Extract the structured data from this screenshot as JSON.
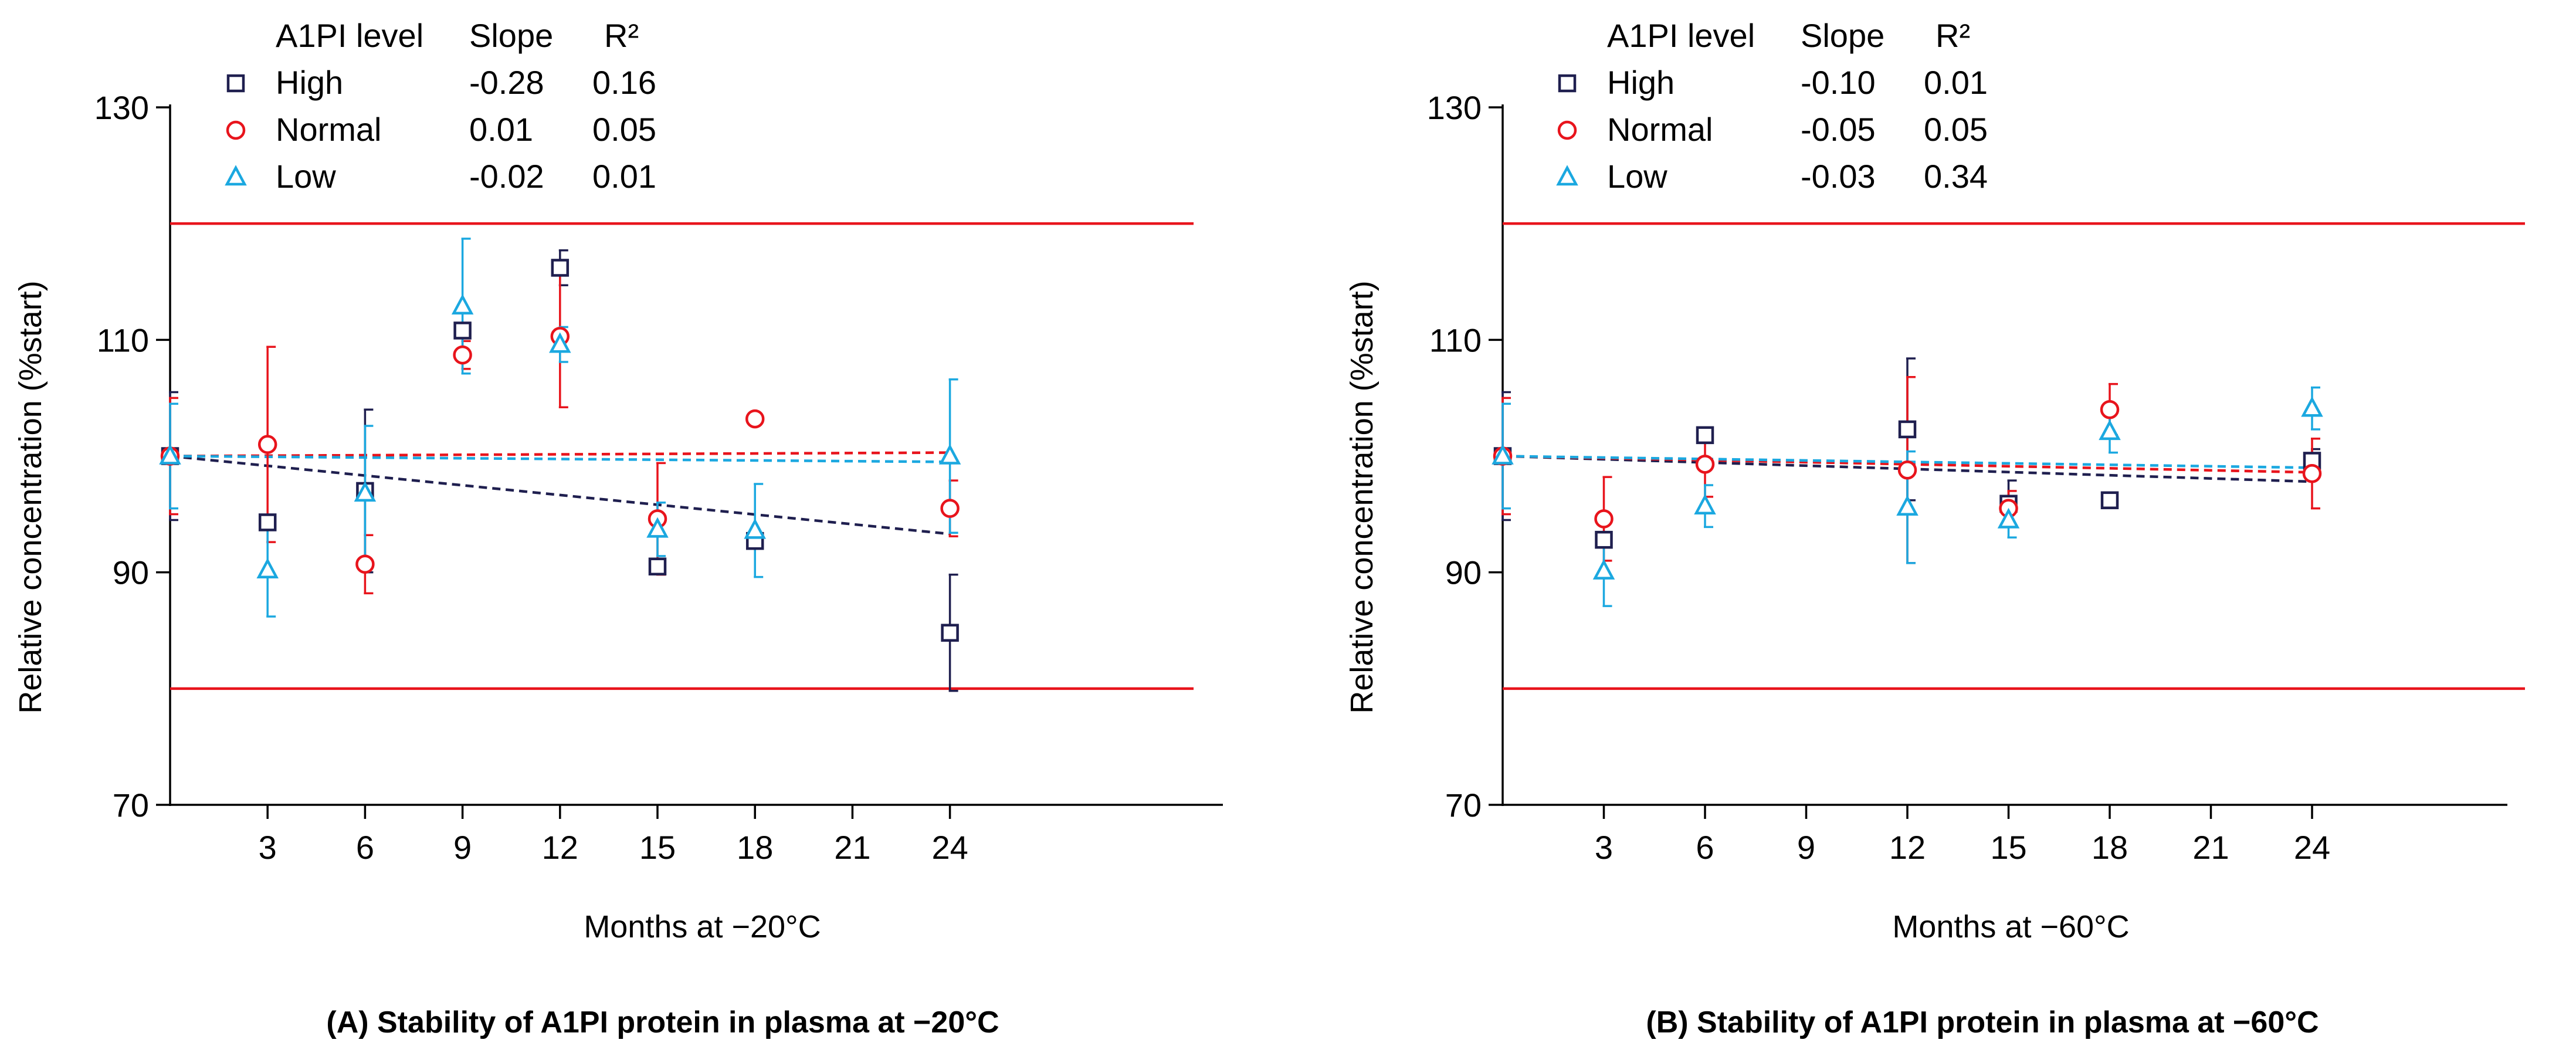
{
  "colors": {
    "high": "#1f1f4f",
    "normal": "#e8141c",
    "low": "#1ba8e0",
    "limit": "#e8141c"
  },
  "chart_data": [
    {
      "type": "scatter",
      "caption": "(A) Stability of A1PI protein in plasma at −20°C",
      "xlabel": "Months at −20°C",
      "ylabel": "Relative concentration (%start)",
      "xlim": [
        0,
        26
      ],
      "ylim": [
        70,
        130
      ],
      "xticks": [
        3,
        6,
        9,
        12,
        15,
        18,
        21,
        24
      ],
      "yticks": [
        70,
        90,
        110,
        130
      ],
      "limit_lines": [
        120,
        80
      ],
      "legend_position": "top-left",
      "legend_header": {
        "level": "A1PI level",
        "slope": "Slope",
        "r2": "R²"
      },
      "series": [
        {
          "name": "High",
          "key": "high",
          "marker": "square",
          "slope": "-0.28",
          "r2": "0.16",
          "trend": [
            [
              0,
              100
            ],
            [
              24,
              93.3
            ]
          ],
          "points": [
            {
              "x": 0,
              "y": 100,
              "err": 5.5
            },
            {
              "x": 3,
              "y": 94.3,
              "err": 0
            },
            {
              "x": 6,
              "y": 97.0,
              "err": 7
            },
            {
              "x": 9,
              "y": 110.8,
              "err": 0
            },
            {
              "x": 12,
              "y": 116.2,
              "err": 1.5
            },
            {
              "x": 15,
              "y": 90.5,
              "err": 0
            },
            {
              "x": 18,
              "y": 92.7,
              "err": 0
            },
            {
              "x": 24,
              "y": 84.8,
              "err": 5
            }
          ]
        },
        {
          "name": "Normal",
          "key": "normal",
          "marker": "circle",
          "slope": "0.01",
          "r2": "0.05",
          "trend": [
            [
              0,
              100
            ],
            [
              24,
              100.3
            ]
          ],
          "points": [
            {
              "x": 0,
              "y": 100,
              "err": 5
            },
            {
              "x": 3,
              "y": 101.0,
              "err": 8.4
            },
            {
              "x": 6,
              "y": 90.7,
              "err": 2.5
            },
            {
              "x": 9,
              "y": 108.7,
              "err": 1.2
            },
            {
              "x": 12,
              "y": 110.3,
              "err": 6.1
            },
            {
              "x": 15,
              "y": 94.6,
              "err": 4.8
            },
            {
              "x": 18,
              "y": 103.2,
              "err": 0
            },
            {
              "x": 24,
              "y": 95.5,
              "err": 2.4
            }
          ]
        },
        {
          "name": "Low",
          "key": "low",
          "marker": "triangle",
          "slope": "-0.02",
          "r2": "0.01",
          "trend": [
            [
              0,
              100
            ],
            [
              24,
              99.5
            ]
          ],
          "points": [
            {
              "x": 0,
              "y": 100,
              "err": 4.5
            },
            {
              "x": 3,
              "y": 90.2,
              "err": 4
            },
            {
              "x": 6,
              "y": 96.8,
              "err": 5.8
            },
            {
              "x": 9,
              "y": 112.9,
              "err": 5.8
            },
            {
              "x": 12,
              "y": 109.6,
              "err": 1.5
            },
            {
              "x": 15,
              "y": 93.7,
              "err": 2.3
            },
            {
              "x": 18,
              "y": 93.6,
              "err": 4
            },
            {
              "x": 24,
              "y": 100.0,
              "err": 6.6
            }
          ]
        }
      ]
    },
    {
      "type": "scatter",
      "caption": "(B) Stability of A1PI protein in plasma at −60°C",
      "xlabel": "Months at −60°C",
      "ylabel": "Relative concentration (%start)",
      "xlim": [
        0,
        26
      ],
      "ylim": [
        70,
        130
      ],
      "xticks": [
        3,
        6,
        9,
        12,
        15,
        18,
        21,
        24
      ],
      "yticks": [
        70,
        90,
        110,
        130
      ],
      "limit_lines": [
        120,
        80
      ],
      "legend_position": "top-left",
      "legend_header": {
        "level": "A1PI level",
        "slope": "Slope",
        "r2": "R²"
      },
      "series": [
        {
          "name": "High",
          "key": "high",
          "marker": "square",
          "slope": "-0.10",
          "r2": "0.01",
          "trend": [
            [
              0,
              100
            ],
            [
              24,
              97.8
            ]
          ],
          "points": [
            {
              "x": 0,
              "y": 100,
              "err": 5.5
            },
            {
              "x": 3,
              "y": 92.8,
              "err": 0
            },
            {
              "x": 6,
              "y": 101.8,
              "err": 0
            },
            {
              "x": 12,
              "y": 102.3,
              "err": 6.1
            },
            {
              "x": 15,
              "y": 95.9,
              "err": 2
            },
            {
              "x": 18,
              "y": 96.2,
              "err": 0
            },
            {
              "x": 24,
              "y": 99.6,
              "err": 1
            }
          ]
        },
        {
          "name": "Normal",
          "key": "normal",
          "marker": "circle",
          "slope": "-0.05",
          "r2": "0.05",
          "trend": [
            [
              0,
              100
            ],
            [
              24,
              98.6
            ]
          ],
          "points": [
            {
              "x": 0,
              "y": 100,
              "err": 5
            },
            {
              "x": 3,
              "y": 94.6,
              "err": 3.6
            },
            {
              "x": 6,
              "y": 99.3,
              "err": 2.8
            },
            {
              "x": 12,
              "y": 98.8,
              "err": 8
            },
            {
              "x": 15,
              "y": 95.5,
              "err": 1.5
            },
            {
              "x": 18,
              "y": 104.0,
              "err": 2.2
            },
            {
              "x": 24,
              "y": 98.5,
              "err": 3
            }
          ]
        },
        {
          "name": "Low",
          "key": "low",
          "marker": "triangle",
          "slope": "-0.03",
          "r2": "0.34",
          "trend": [
            [
              0,
              100
            ],
            [
              24,
              99.0
            ]
          ],
          "points": [
            {
              "x": 0,
              "y": 100,
              "err": 4.5
            },
            {
              "x": 3,
              "y": 90.1,
              "err": 3
            },
            {
              "x": 6,
              "y": 95.7,
              "err": 1.8
            },
            {
              "x": 12,
              "y": 95.6,
              "err": 4.8
            },
            {
              "x": 15,
              "y": 94.5,
              "err": 1.5
            },
            {
              "x": 18,
              "y": 102.1,
              "err": 1.8
            },
            {
              "x": 24,
              "y": 104.1,
              "err": 1.8
            }
          ]
        }
      ]
    }
  ]
}
